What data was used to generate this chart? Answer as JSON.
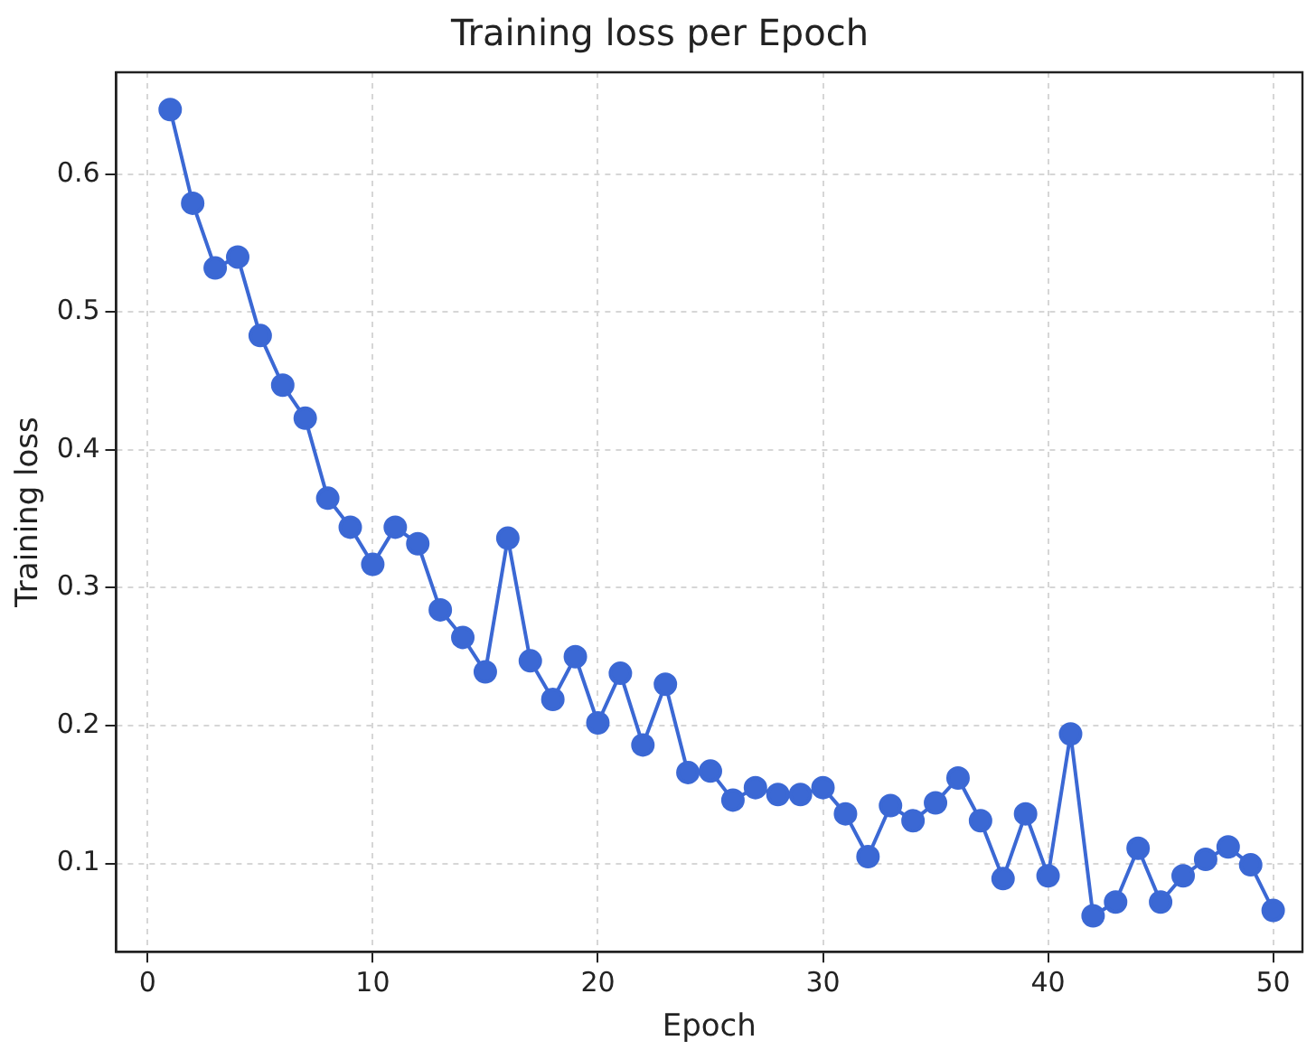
{
  "chart_data": {
    "type": "line",
    "title": "Training loss per Epoch",
    "xlabel": "Epoch",
    "ylabel": "Training loss",
    "x": [
      1,
      2,
      3,
      4,
      5,
      6,
      7,
      8,
      9,
      10,
      11,
      12,
      13,
      14,
      15,
      16,
      17,
      18,
      19,
      20,
      21,
      22,
      23,
      24,
      25,
      26,
      27,
      28,
      29,
      30,
      31,
      32,
      33,
      34,
      35,
      36,
      37,
      38,
      39,
      40,
      41,
      42,
      43,
      44,
      45,
      46,
      47,
      48,
      49,
      50
    ],
    "series": [
      {
        "color": "#3b68d4",
        "values": [
          0.647,
          0.579,
          0.532,
          0.54,
          0.483,
          0.447,
          0.423,
          0.365,
          0.344,
          0.317,
          0.344,
          0.332,
          0.284,
          0.264,
          0.239,
          0.336,
          0.247,
          0.219,
          0.25,
          0.202,
          0.238,
          0.186,
          0.23,
          0.166,
          0.167,
          0.146,
          0.155,
          0.15,
          0.15,
          0.155,
          0.136,
          0.105,
          0.142,
          0.131,
          0.144,
          0.162,
          0.131,
          0.089,
          0.136,
          0.091,
          0.194,
          0.062,
          0.072,
          0.111,
          0.072,
          0.091,
          0.103,
          0.112,
          0.099,
          0.066
        ]
      }
    ],
    "xlim": [
      -1.4,
      51.3
    ],
    "ylim": [
      0.036,
      0.674
    ],
    "xticks": [
      0,
      10,
      20,
      30,
      40,
      50
    ],
    "yticks": [
      0.1,
      0.2,
      0.3,
      0.4,
      0.5,
      0.6
    ],
    "grid": true,
    "marker": "circle",
    "line_style": "solid",
    "legend": false
  }
}
